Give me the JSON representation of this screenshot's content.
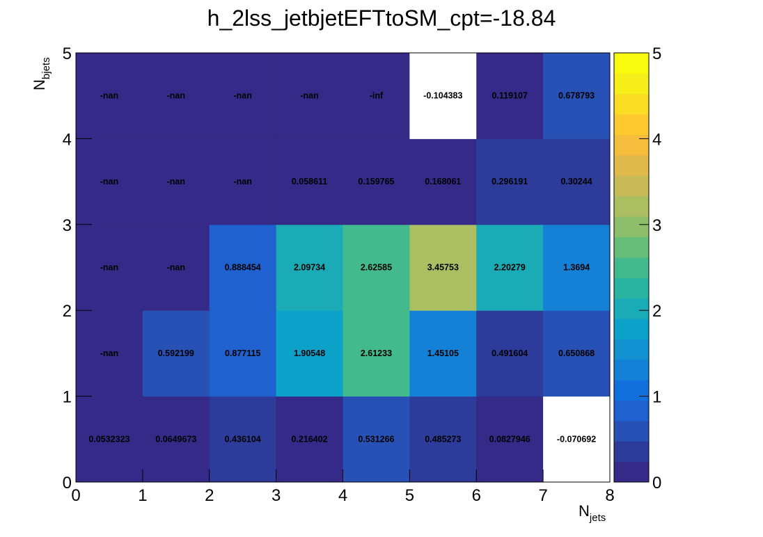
{
  "chart_data": {
    "type": "heatmap",
    "title": "h_2lss_jetbjetEFTtoSM_cpt=-18.84",
    "xlabel": "N",
    "xlabel_sub": "jets",
    "ylabel": "N",
    "ylabel_sub": "bjets",
    "xlim": [
      0,
      8
    ],
    "ylim": [
      0,
      5
    ],
    "zlim": [
      0,
      5
    ],
    "x_ticks": [
      "0",
      "1",
      "2",
      "3",
      "4",
      "5",
      "6",
      "7",
      "8"
    ],
    "y_ticks": [
      "0",
      "1",
      "2",
      "3",
      "4",
      "5"
    ],
    "z_ticks": [
      "0",
      "1",
      "2",
      "3",
      "4",
      "5"
    ],
    "palette": [
      "#352a87",
      "#2d3c9a",
      "#2851b5",
      "#1f62cf",
      "#1170db",
      "#1481d6",
      "#1292d1",
      "#0ba1c9",
      "#1aabb6",
      "#29b4a2",
      "#43ba8d",
      "#67be79",
      "#8cbe6c",
      "#acbe62",
      "#c8bb57",
      "#dfb94c",
      "#f4bd3c",
      "#fcc92e",
      "#f9dc23",
      "#f6ef19",
      "#f9fb0e"
    ],
    "underflow_color": "#ffffff",
    "rows": [
      {
        "y": "0-1",
        "values": [
          0.0532323,
          0.0649673,
          0.436104,
          0.216402,
          0.531266,
          0.485273,
          0.0827946,
          -0.070692
        ],
        "labels": [
          "0.0532323",
          "0.0649673",
          "0.436104",
          "0.216402",
          "0.531266",
          "0.485273",
          "0.0827946",
          "-0.070692"
        ]
      },
      {
        "y": "1-2",
        "values": [
          null,
          0.592199,
          0.877115,
          1.90548,
          2.61233,
          1.45105,
          0.491604,
          0.650868
        ],
        "labels": [
          "-nan",
          "0.592199",
          "0.877115",
          "1.90548",
          "2.61233",
          "1.45105",
          "0.491604",
          "0.650868"
        ]
      },
      {
        "y": "2-3",
        "values": [
          null,
          null,
          0.888454,
          2.09734,
          2.62585,
          3.45753,
          2.20279,
          1.3694
        ],
        "labels": [
          "-nan",
          "-nan",
          "0.888454",
          "2.09734",
          "2.62585",
          "3.45753",
          "2.20279",
          "1.3694"
        ]
      },
      {
        "y": "3-4",
        "values": [
          null,
          null,
          null,
          0.058611,
          0.159765,
          0.168061,
          0.296191,
          0.30244
        ],
        "labels": [
          "-nan",
          "-nan",
          "-nan",
          "0.058611",
          "0.159765",
          "0.168061",
          "0.296191",
          "0.30244"
        ]
      },
      {
        "y": "4-5",
        "values": [
          null,
          null,
          null,
          null,
          null,
          -0.104383,
          0.119107,
          0.678793
        ],
        "labels": [
          "-nan",
          "-nan",
          "-nan",
          "-nan",
          "-inf",
          "-0.104383",
          "0.119107",
          "0.678793"
        ]
      }
    ]
  }
}
